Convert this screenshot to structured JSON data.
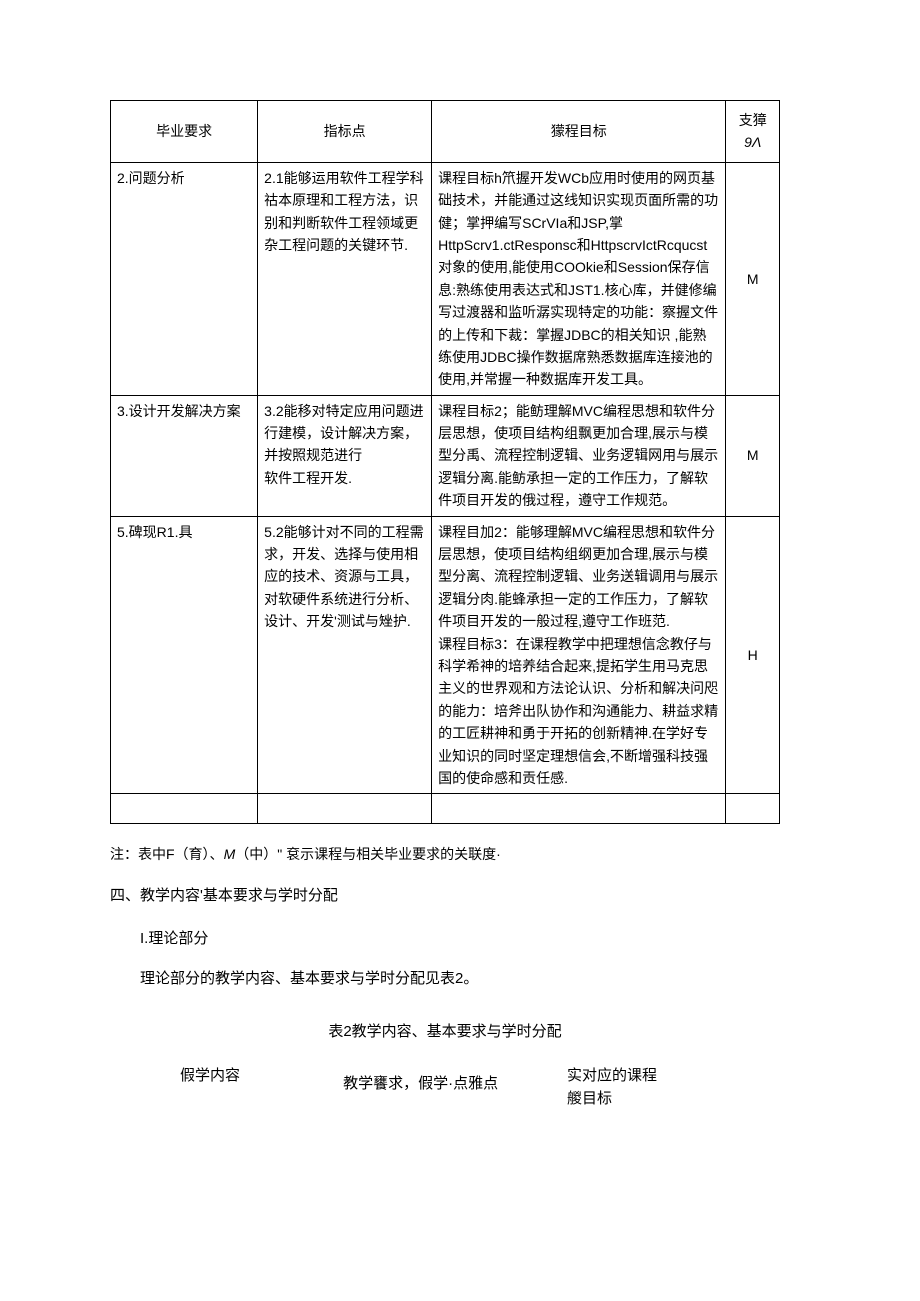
{
  "table1": {
    "headers": {
      "col1": "毕业要求",
      "col2": "指标点",
      "col3": "獴程目标",
      "col4_line1": "支獐",
      "col4_line2": "9Λ"
    },
    "rows": [
      {
        "req": "2.问题分析",
        "indicator": "2.1能够运用软件工程学科祜本原理和工程方法，识别和判断软件工程领域更杂工程问题的关键环节.",
        "goal": "课程目标h笊握开发WCb应用时使用的网页基础技术，并能通过这线知识实现页面所需的功健；掌押编写SCrVIa和JSP,掌\n        HttpScrv1.ctResponsc和HttpscrvIctRcqucst对象的使用,能使用COOkie和Session保存信息:熟练使用表达式和JST1.核心库，并健修编写过渡器和监听潺实现特定的功能：察握文件的上传和下裁：掌握JDBC的相关知识 ,能熟练使用JDBC操作数据席熟悉数据库连接池的使用,并常握一种数据库开发工具。",
        "level": "M"
      },
      {
        "req": "3.设计开发解决方案",
        "indicator": "3.2能移对特定应用问题进行建模，设计解决方案，并按照规范进行\n软件工程开发.",
        "goal": "课程目标2；能鲂理解MVC编程思想和软件分层思想，使项目结构组飘更加合理,展示与模型分禹、流程控制逻辑、业务逻辑网用与展示逻辑分离.能鲂承担一定的工作压力，了解软件项目开发的俄过程，遵守工作规范。",
        "level": "M"
      },
      {
        "req": "5.碑现R1.具",
        "indicator": "5.2能够计对不同的工程需求，开发、选择与使用相应的技术、资源与工具，对软硬件系统进行分析、设计、开发'测试与矬护.",
        "goal": "课程目加2：能够理解MVC编程思想和软件分层思想，使项目结构组纲更加合理,展示与模型分离、流程控制逻辑、业务送辑调用与展示逻辑分肉.能蜂承担一定的工作压力，了解软件项目开发的一般过程,遵守工作班范.\n课程目标3：在课程教学中把理想信念教仔与科学希神的培养结合起来,提拓学生用马克思主义的世界观和方法论认识、分析和解决问咫的能力：培斧出队协作和沟通能力、耕益求精的工匠耕神和勇于开拓的创新精神.在学好专业知识的同时坚定理想信会,不断增强科技强国的使命感和贡任感.",
        "level": "H"
      }
    ]
  },
  "note_text": "注：表中F（育）、",
  "note_italic": "M",
  "note_text2": "（中）\" 袞示课程与相关毕业要求的关联度·",
  "section4_heading": "四、教学内容'基本要求与学时分配",
  "subsection1": "I.理论部分",
  "paragraph1": "理论部分的教学内容、基本要求与学时分配见表2。",
  "table2_caption": "表2教学内容、基本要求与学时分配",
  "table2_headers": {
    "col1": "假学内容",
    "col2": "教学饔求，假学·点雅点",
    "col3_line1": "实对应的课程",
    "col3_line2": "艐目标"
  }
}
